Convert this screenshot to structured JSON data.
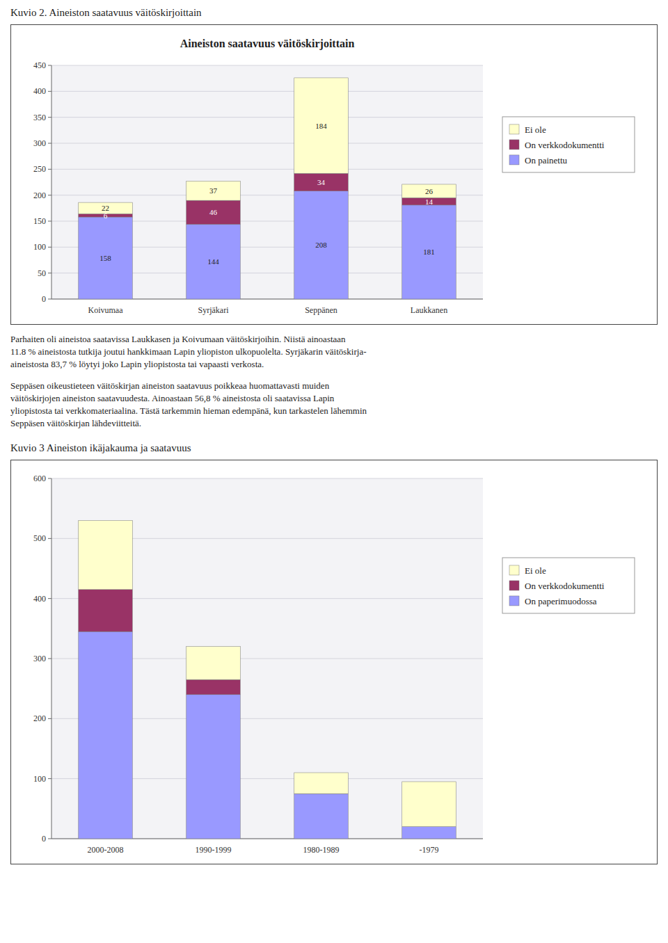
{
  "chart_data": [
    {
      "type": "bar",
      "title": "Aineiston saatavuus väitöskirjoittain",
      "subtitle": "Kuvio 2. Aineiston saatavuus väitöskirjoittain",
      "annotations": [
        "Parhaiten oli aineistoa saatavissa Laukkasen ja Koivumaan väitöskirjoihin. Niistä ainoastaan\n11.8 % aineistosta tutkija joutui hankkimaan Lapin yliopiston ulkopuolelta. Syrjäkarin väitöskirja-\naineistosta 83,7 % löytyi joko Lapin yliopistosta tai vapaasti verkosta.",
        "Seppäsen oikeustieteen väitöskirjan aineiston saatavuus poikkeaa huomattavasti muiden\nväitöskirjojen aineiston saatavuudesta. Ainoastaan 56,8 % aineistosta oli saatavissa Lapin\nyliopistosta tai verkkomateriaalina. Tästä tarkemmin hieman edempänä, kun tarkastelen lähemmin\nSeppäsen väitöskirjan lähdeviitteitä."
      ],
      "categories": [
        "Koivumaa",
        "Syrjäkari",
        "Seppänen",
        "Laukkanen"
      ],
      "series": [
        {
          "name": "On painettu",
          "color": "#9999FF",
          "values": [
            158,
            144,
            208,
            181
          ]
        },
        {
          "name": "On verkkodokumentti",
          "color": "#993366",
          "values": [
            6,
            46,
            34,
            14
          ]
        },
        {
          "name": "Ei ole",
          "color": "#FFFFCC",
          "values": [
            22,
            37,
            184,
            26
          ]
        }
      ],
      "ylim": [
        0,
        450
      ],
      "yticks": [
        0,
        50,
        100,
        150,
        200,
        250,
        300,
        350,
        400,
        450
      ],
      "stacked": true,
      "grid": true,
      "legend": "right",
      "data_labels": true
    },
    {
      "type": "bar",
      "subtitle": "Kuvio 3 Aineiston ikäjakauma ja saatavuus",
      "categories": [
        "2000-2008",
        "1990-1999",
        "1980-1989",
        "-1979"
      ],
      "series": [
        {
          "name": "On paperimuodossa",
          "color": "#9999FF",
          "values": [
            345,
            240,
            75,
            20
          ]
        },
        {
          "name": "On verkkodokumentti",
          "color": "#993366",
          "values": [
            70,
            25,
            0,
            0
          ]
        },
        {
          "name": "Ei ole",
          "color": "#FFFFCC",
          "values": [
            115,
            55,
            35,
            75
          ]
        }
      ],
      "ylim": [
        0,
        600
      ],
      "yticks": [
        0,
        100,
        200,
        300,
        400,
        500,
        600
      ],
      "stacked": true,
      "grid": true,
      "legend": "right",
      "data_labels": false
    }
  ]
}
